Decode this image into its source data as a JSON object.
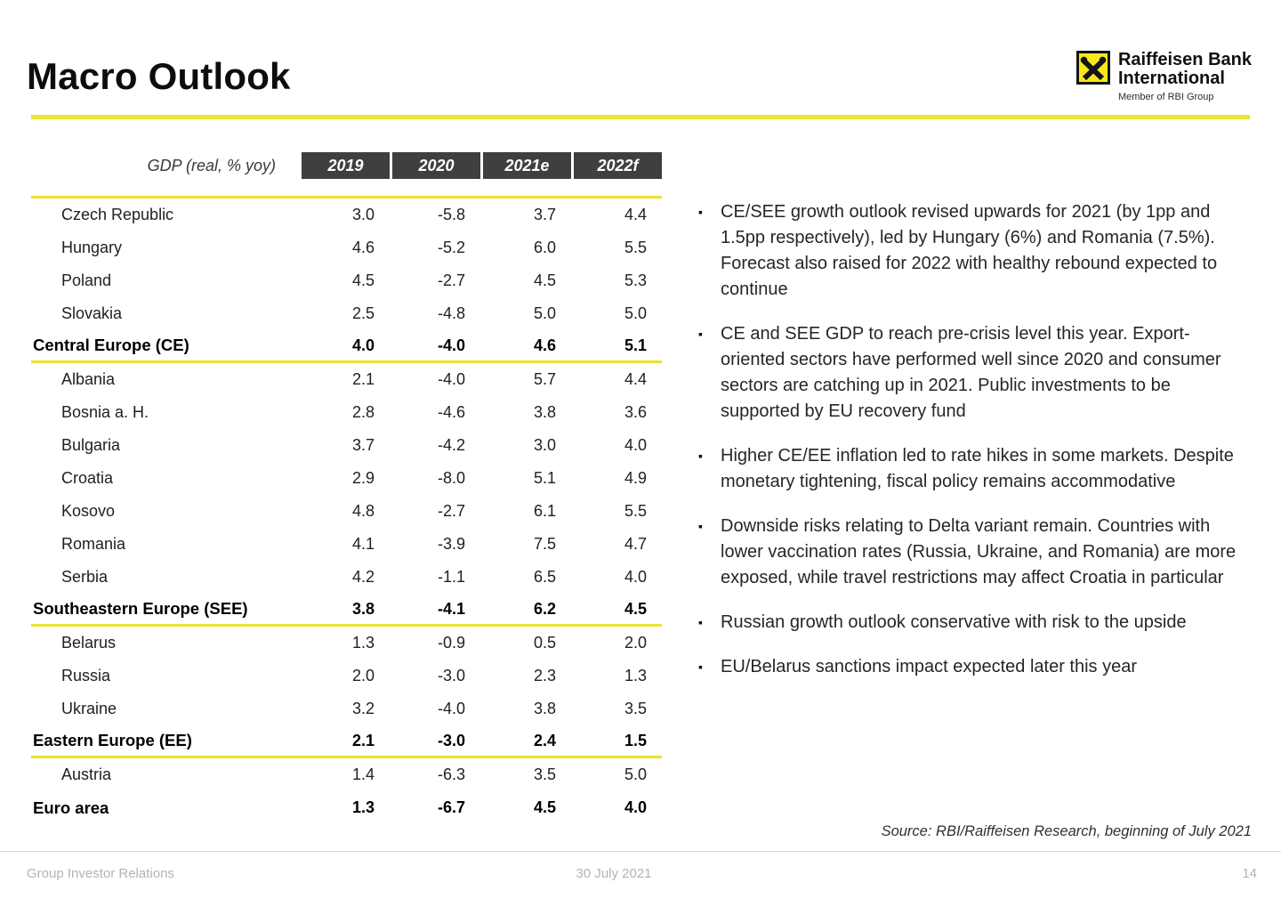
{
  "slide": {
    "title": "Macro Outlook",
    "logo": {
      "name_line1": "Raiffeisen Bank",
      "name_line2": "International",
      "member": "Member of RBI Group"
    },
    "colors": {
      "accent_yellow": "#ECE42F",
      "logo_yellow": "#F8E71C",
      "table_header_bg": "#3F3F3F"
    }
  },
  "table": {
    "unit_label": "GDP (real, % yoy)",
    "columns": [
      "2019",
      "2020",
      "2021e",
      "2022f"
    ],
    "rows": [
      {
        "label": "Czech Republic",
        "values": [
          "3.0",
          "-5.8",
          "3.7",
          "4.4"
        ],
        "bold": false,
        "rule_after": false
      },
      {
        "label": "Hungary",
        "values": [
          "4.6",
          "-5.2",
          "6.0",
          "5.5"
        ],
        "bold": false,
        "rule_after": false
      },
      {
        "label": "Poland",
        "values": [
          "4.5",
          "-2.7",
          "4.5",
          "5.3"
        ],
        "bold": false,
        "rule_after": false
      },
      {
        "label": "Slovakia",
        "values": [
          "2.5",
          "-4.8",
          "5.0",
          "5.0"
        ],
        "bold": false,
        "rule_after": false
      },
      {
        "label": "Central Europe (CE)",
        "values": [
          "4.0",
          "-4.0",
          "4.6",
          "5.1"
        ],
        "bold": true,
        "rule_after": true
      },
      {
        "label": "Albania",
        "values": [
          "2.1",
          "-4.0",
          "5.7",
          "4.4"
        ],
        "bold": false,
        "rule_after": false
      },
      {
        "label": "Bosnia a. H.",
        "values": [
          "2.8",
          "-4.6",
          "3.8",
          "3.6"
        ],
        "bold": false,
        "rule_after": false
      },
      {
        "label": "Bulgaria",
        "values": [
          "3.7",
          "-4.2",
          "3.0",
          "4.0"
        ],
        "bold": false,
        "rule_after": false
      },
      {
        "label": "Croatia",
        "values": [
          "2.9",
          "-8.0",
          "5.1",
          "4.9"
        ],
        "bold": false,
        "rule_after": false
      },
      {
        "label": "Kosovo",
        "values": [
          "4.8",
          "-2.7",
          "6.1",
          "5.5"
        ],
        "bold": false,
        "rule_after": false
      },
      {
        "label": "Romania",
        "values": [
          "4.1",
          "-3.9",
          "7.5",
          "4.7"
        ],
        "bold": false,
        "rule_after": false
      },
      {
        "label": "Serbia",
        "values": [
          "4.2",
          "-1.1",
          "6.5",
          "4.0"
        ],
        "bold": false,
        "rule_after": false
      },
      {
        "label": "Southeastern Europe (SEE)",
        "values": [
          "3.8",
          "-4.1",
          "6.2",
          "4.5"
        ],
        "bold": true,
        "rule_after": true
      },
      {
        "label": "Belarus",
        "values": [
          "1.3",
          "-0.9",
          "0.5",
          "2.0"
        ],
        "bold": false,
        "rule_after": false
      },
      {
        "label": "Russia",
        "values": [
          "2.0",
          "-3.0",
          "2.3",
          "1.3"
        ],
        "bold": false,
        "rule_after": false
      },
      {
        "label": "Ukraine",
        "values": [
          "3.2",
          "-4.0",
          "3.8",
          "3.5"
        ],
        "bold": false,
        "rule_after": false
      },
      {
        "label": "Eastern Europe (EE)",
        "values": [
          "2.1",
          "-3.0",
          "2.4",
          "1.5"
        ],
        "bold": true,
        "rule_after": true
      },
      {
        "label": "Austria",
        "values": [
          "1.4",
          "-6.3",
          "3.5",
          "5.0"
        ],
        "bold": false,
        "rule_after": false
      },
      {
        "label": "Euro area",
        "values": [
          "1.3",
          "-6.7",
          "4.5",
          "4.0"
        ],
        "bold": true,
        "rule_after": false
      }
    ]
  },
  "bullets": {
    "marker": "▪",
    "items": [
      "CE/SEE growth outlook revised upwards for 2021 (by 1pp and 1.5pp respectively), led by Hungary (6%) and Romania (7.5%). Forecast also raised for 2022 with healthy rebound expected to continue",
      "CE and SEE GDP to reach pre-crisis level this year. Export-oriented sectors have performed well since 2020 and consumer sectors are catching up in 2021. Public investments to be supported by EU recovery fund",
      "Higher CE/EE inflation led to rate hikes in some markets. Despite monetary tightening, fiscal policy remains accommodative",
      "Downside risks relating to Delta variant remain. Countries with lower vaccination rates (Russia, Ukraine, and Romania) are more exposed, while travel restrictions may affect Croatia in particular",
      "Russian growth outlook conservative with risk to the upside",
      "EU/Belarus sanctions impact expected later this year"
    ]
  },
  "source": "Source: RBI/Raiffeisen Research, beginning of July 2021",
  "footer": {
    "left": "Group Investor Relations",
    "center": "30 July 2021",
    "page": "14"
  }
}
